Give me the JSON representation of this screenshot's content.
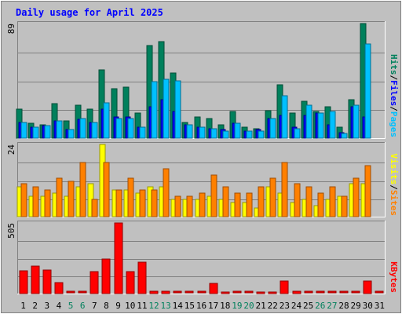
{
  "title": "Daily usage for April 2025",
  "colors": {
    "background": "#c0c0c0",
    "title": "#0000ff",
    "hits": "#00805c",
    "files": "#0000ff",
    "pages": "#00c0ff",
    "visits": "#ffff00",
    "sites": "#ff8000",
    "kbytes": "#ff0000",
    "weekend_day": "#00805c",
    "weekday": "#000000",
    "grid": "#808080"
  },
  "chart_data": [
    {
      "type": "bar",
      "panel": "hits_files_pages",
      "ymax_label": "89",
      "ymax": 89,
      "legend": [
        {
          "text": "Hits",
          "color": "#00805c"
        },
        {
          "text": "/",
          "color": "#000000"
        },
        {
          "text": "Files",
          "color": "#0000ff"
        },
        {
          "text": "/",
          "color": "#000000"
        },
        {
          "text": "Pages",
          "color": "#00c0ff"
        }
      ],
      "categories": [
        "1",
        "2",
        "3",
        "4",
        "5",
        "6",
        "7",
        "8",
        "9",
        "10",
        "11",
        "12",
        "13",
        "14",
        "15",
        "16",
        "17",
        "18",
        "19",
        "20",
        "21",
        "22",
        "23",
        "24",
        "25",
        "26",
        "27",
        "28",
        "29",
        "30",
        "31"
      ],
      "series": [
        {
          "name": "Hits",
          "values": [
            23,
            12,
            11,
            27,
            14,
            26,
            23,
            53,
            39,
            40,
            20,
            72,
            75,
            51,
            13,
            17,
            16,
            11,
            21,
            9,
            8,
            22,
            42,
            20,
            29,
            21,
            25,
            9,
            30,
            89,
            0
          ]
        },
        {
          "name": "Files",
          "values": [
            13,
            9,
            10,
            14,
            7,
            15,
            13,
            23,
            17,
            17,
            9,
            25,
            30,
            21,
            11,
            9,
            8,
            7,
            12,
            6,
            7,
            16,
            18,
            9,
            18,
            20,
            11,
            5,
            25,
            17,
            0
          ]
        },
        {
          "name": "Pages",
          "values": [
            13,
            9,
            10,
            14,
            7,
            16,
            13,
            28,
            16,
            16,
            9,
            44,
            46,
            45,
            11,
            9,
            8,
            6,
            12,
            6,
            6,
            16,
            33,
            8,
            26,
            20,
            21,
            4,
            26,
            73,
            0
          ]
        }
      ]
    },
    {
      "type": "bar",
      "panel": "visits_sites",
      "ymax_label": "24",
      "ymax": 24,
      "legend": [
        {
          "text": "Visits",
          "color": "#ffff00"
        },
        {
          "text": "/",
          "color": "#000000"
        },
        {
          "text": "Sites",
          "color": "#ff8000"
        }
      ],
      "categories": [
        "1",
        "2",
        "3",
        "4",
        "5",
        "6",
        "7",
        "8",
        "9",
        "10",
        "11",
        "12",
        "13",
        "14",
        "15",
        "16",
        "17",
        "18",
        "19",
        "20",
        "21",
        "22",
        "23",
        "24",
        "25",
        "26",
        "27",
        "28",
        "29",
        "30",
        "31"
      ],
      "series": [
        {
          "name": "Visits",
          "values": [
            10,
            7,
            7,
            8,
            7,
            10,
            11,
            24,
            9,
            9,
            8,
            10,
            10,
            6,
            6,
            6,
            7,
            6,
            5,
            5,
            3,
            10,
            8,
            5,
            6,
            4,
            6,
            7,
            11,
            11,
            0
          ]
        },
        {
          "name": "Sites",
          "values": [
            11,
            10,
            9,
            13,
            12,
            18,
            6,
            18,
            9,
            13,
            9,
            9,
            16,
            7,
            7,
            8,
            14,
            10,
            8,
            8,
            10,
            13,
            18,
            11,
            10,
            8,
            10,
            7,
            13,
            17,
            0
          ]
        }
      ]
    },
    {
      "type": "bar",
      "panel": "kbytes",
      "ymax_label": "505",
      "ymax": 505,
      "legend": [
        {
          "text": "KBytes",
          "color": "#ff0000"
        }
      ],
      "categories": [
        "1",
        "2",
        "3",
        "4",
        "5",
        "6",
        "7",
        "8",
        "9",
        "10",
        "11",
        "12",
        "13",
        "14",
        "15",
        "16",
        "17",
        "18",
        "19",
        "20",
        "21",
        "22",
        "23",
        "24",
        "25",
        "26",
        "27",
        "28",
        "29",
        "30",
        "31"
      ],
      "series": [
        {
          "name": "KBytes",
          "values": [
            165,
            200,
            170,
            85,
            0,
            0,
            160,
            250,
            505,
            160,
            225,
            20,
            20,
            0,
            0,
            0,
            75,
            15,
            0,
            0,
            15,
            15,
            95,
            20,
            0,
            0,
            0,
            0,
            0,
            95,
            0
          ]
        }
      ]
    }
  ],
  "x_axis": {
    "labels": [
      "1",
      "2",
      "3",
      "4",
      "5",
      "6",
      "7",
      "8",
      "9",
      "10",
      "11",
      "12",
      "13",
      "14",
      "15",
      "16",
      "17",
      "18",
      "19",
      "20",
      "21",
      "22",
      "23",
      "24",
      "25",
      "26",
      "27",
      "28",
      "29",
      "30",
      "31"
    ],
    "weekend_days": [
      "5",
      "6",
      "12",
      "13",
      "19",
      "20",
      "26",
      "27"
    ]
  }
}
